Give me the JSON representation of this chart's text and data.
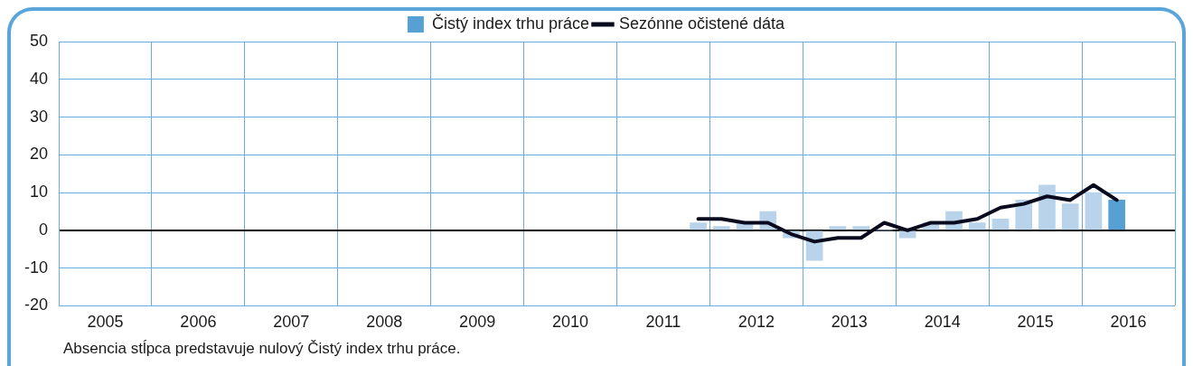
{
  "chart_data": {
    "type": "bar",
    "x": [
      2011.875,
      2012.125,
      2012.375,
      2012.625,
      2012.875,
      2013.125,
      2013.375,
      2013.625,
      2013.875,
      2014.125,
      2014.375,
      2014.625,
      2014.875,
      2015.125,
      2015.375,
      2015.625,
      2015.875,
      2016.125,
      2016.375
    ],
    "series": [
      {
        "name": "Čistý index trhu práce",
        "color": "#56a0d3",
        "colors": [
          "#b8d3ea",
          "#b8d3ea",
          "#b8d3ea",
          "#b8d3ea",
          "#b8d3ea",
          "#b8d3ea",
          "#b8d3ea",
          "#b8d3ea",
          "#b8d3ea",
          "#b8d3ea",
          "#b8d3ea",
          "#b8d3ea",
          "#b8d3ea",
          "#b8d3ea",
          "#b8d3ea",
          "#b8d3ea",
          "#b8d3ea",
          "#b8d3ea",
          "#56a0d3"
        ],
        "values": [
          2,
          1,
          2,
          5,
          -2,
          -8,
          1,
          1,
          0,
          -2,
          2,
          5,
          2,
          3,
          8,
          12,
          7,
          10,
          8
        ]
      },
      {
        "name": "Sezónne očistené dáta",
        "type": "line",
        "color": "#0a0a1e",
        "values": [
          3,
          3,
          2,
          2,
          -1,
          -3,
          -2,
          -2,
          2,
          0,
          2,
          2,
          3,
          6,
          7,
          9,
          8,
          12,
          8
        ]
      }
    ],
    "xlim": [
      2005,
      2017
    ],
    "xticks": [
      {
        "value": 2005,
        "label": null
      },
      {
        "value": 2005.5,
        "label": "2005"
      },
      {
        "value": 2006,
        "label": null
      },
      {
        "value": 2006.5,
        "label": "2006"
      },
      {
        "value": 2007,
        "label": null
      },
      {
        "value": 2007.5,
        "label": "2007"
      },
      {
        "value": 2008,
        "label": null
      },
      {
        "value": 2008.5,
        "label": "2008"
      },
      {
        "value": 2009,
        "label": null
      },
      {
        "value": 2009.5,
        "label": "2009"
      },
      {
        "value": 2010,
        "label": null
      },
      {
        "value": 2010.5,
        "label": "2010"
      },
      {
        "value": 2011,
        "label": null
      },
      {
        "value": 2011.5,
        "label": "2011"
      },
      {
        "value": 2012,
        "label": null
      },
      {
        "value": 2012.5,
        "label": "2012"
      },
      {
        "value": 2013,
        "label": null
      },
      {
        "value": 2013.5,
        "label": "2013"
      },
      {
        "value": 2014,
        "label": null
      },
      {
        "value": 2014.5,
        "label": "2014"
      },
      {
        "value": 2015,
        "label": null
      },
      {
        "value": 2015.5,
        "label": "2015"
      },
      {
        "value": 2016,
        "label": null
      },
      {
        "value": 2016.5,
        "label": "2016"
      },
      {
        "value": 2017,
        "label": null
      }
    ],
    "ylim": [
      -20,
      50
    ],
    "yticks": [
      -20,
      -10,
      0,
      10,
      20,
      30,
      40,
      50
    ],
    "grid": true,
    "legend": "top",
    "annotations": [
      "Absencia stĺpca predstavuje nulový Čistý index trhu práce."
    ]
  }
}
